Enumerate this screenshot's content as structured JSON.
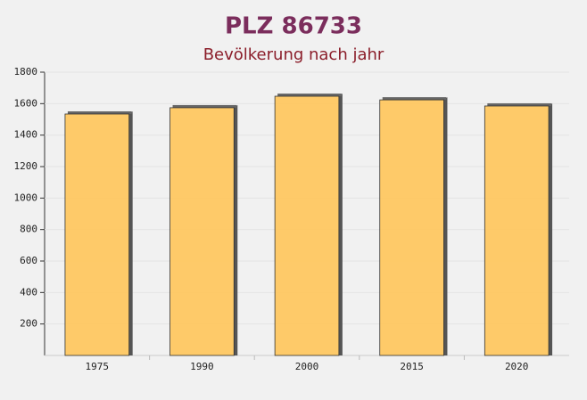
{
  "chart_data": {
    "type": "bar",
    "title": "PLZ 86733",
    "subtitle": "Bevölkerung nach jahr",
    "categories": [
      "1975",
      "1990",
      "2000",
      "2015",
      "2020"
    ],
    "values": [
      1534,
      1574,
      1647,
      1624,
      1585
    ],
    "color": "#ffc55a",
    "ylim": [
      0,
      1800
    ],
    "yticks": [
      200,
      400,
      600,
      800,
      1000,
      1200,
      1400,
      1600,
      1800
    ]
  }
}
